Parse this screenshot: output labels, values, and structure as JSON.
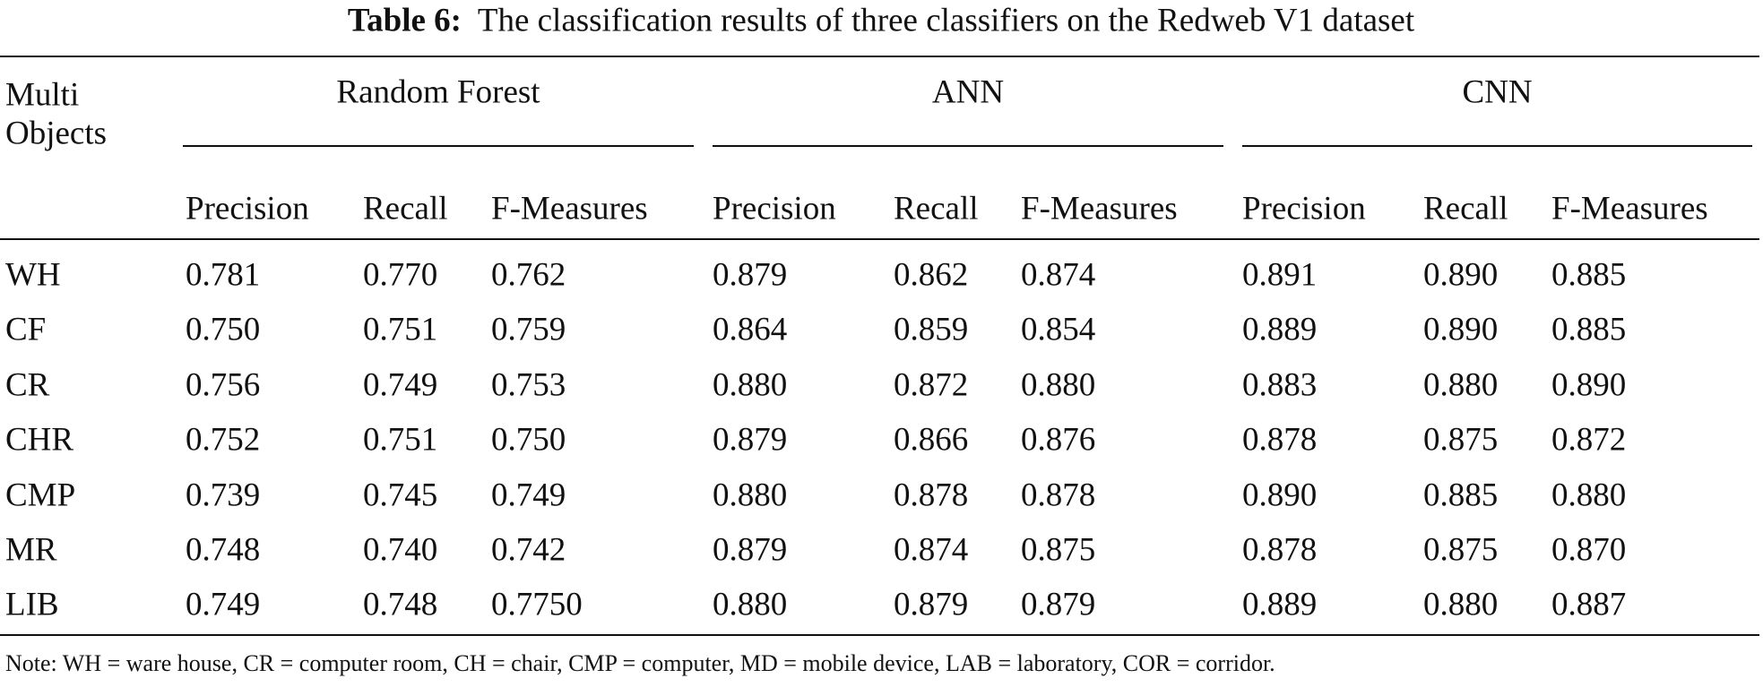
{
  "caption": {
    "label": "Table 6:",
    "text": "The classification results of three classifiers on the Redweb V1 dataset"
  },
  "table": {
    "corner": "Multi Objects",
    "groups": [
      "Random Forest",
      "ANN",
      "CNN"
    ],
    "subheaders": [
      "Precision",
      "Recall",
      "F-Measures",
      "Precision",
      "Recall",
      "F-Measures",
      "Precision",
      "Recall",
      "F-Measures"
    ],
    "rows": [
      [
        "WH",
        "0.781",
        "0.770",
        "0.762",
        "0.879",
        "0.862",
        "0.874",
        "0.891",
        "0.890",
        "0.885"
      ],
      [
        "CF",
        "0.750",
        "0.751",
        "0.759",
        "0.864",
        "0.859",
        "0.854",
        "0.889",
        "0.890",
        "0.885"
      ],
      [
        "CR",
        "0.756",
        "0.749",
        "0.753",
        "0.880",
        "0.872",
        "0.880",
        "0.883",
        "0.880",
        "0.890"
      ],
      [
        "CHR",
        "0.752",
        "0.751",
        "0.750",
        "0.879",
        "0.866",
        "0.876",
        "0.878",
        "0.875",
        "0.872"
      ],
      [
        "CMP",
        "0.739",
        "0.745",
        "0.749",
        "0.880",
        "0.878",
        "0.878",
        "0.890",
        "0.885",
        "0.880"
      ],
      [
        "MR",
        "0.748",
        "0.740",
        "0.742",
        "0.879",
        "0.874",
        "0.875",
        "0.878",
        "0.875",
        "0.870"
      ],
      [
        "LIB",
        "0.749",
        "0.748",
        "0.7750",
        "0.880",
        "0.879",
        "0.879",
        "0.889",
        "0.880",
        "0.887"
      ]
    ]
  },
  "note": "Note: WH = ware house, CR = computer room, CH = chair, CMP = computer, MD = mobile device, LAB = laboratory, COR = corridor."
}
